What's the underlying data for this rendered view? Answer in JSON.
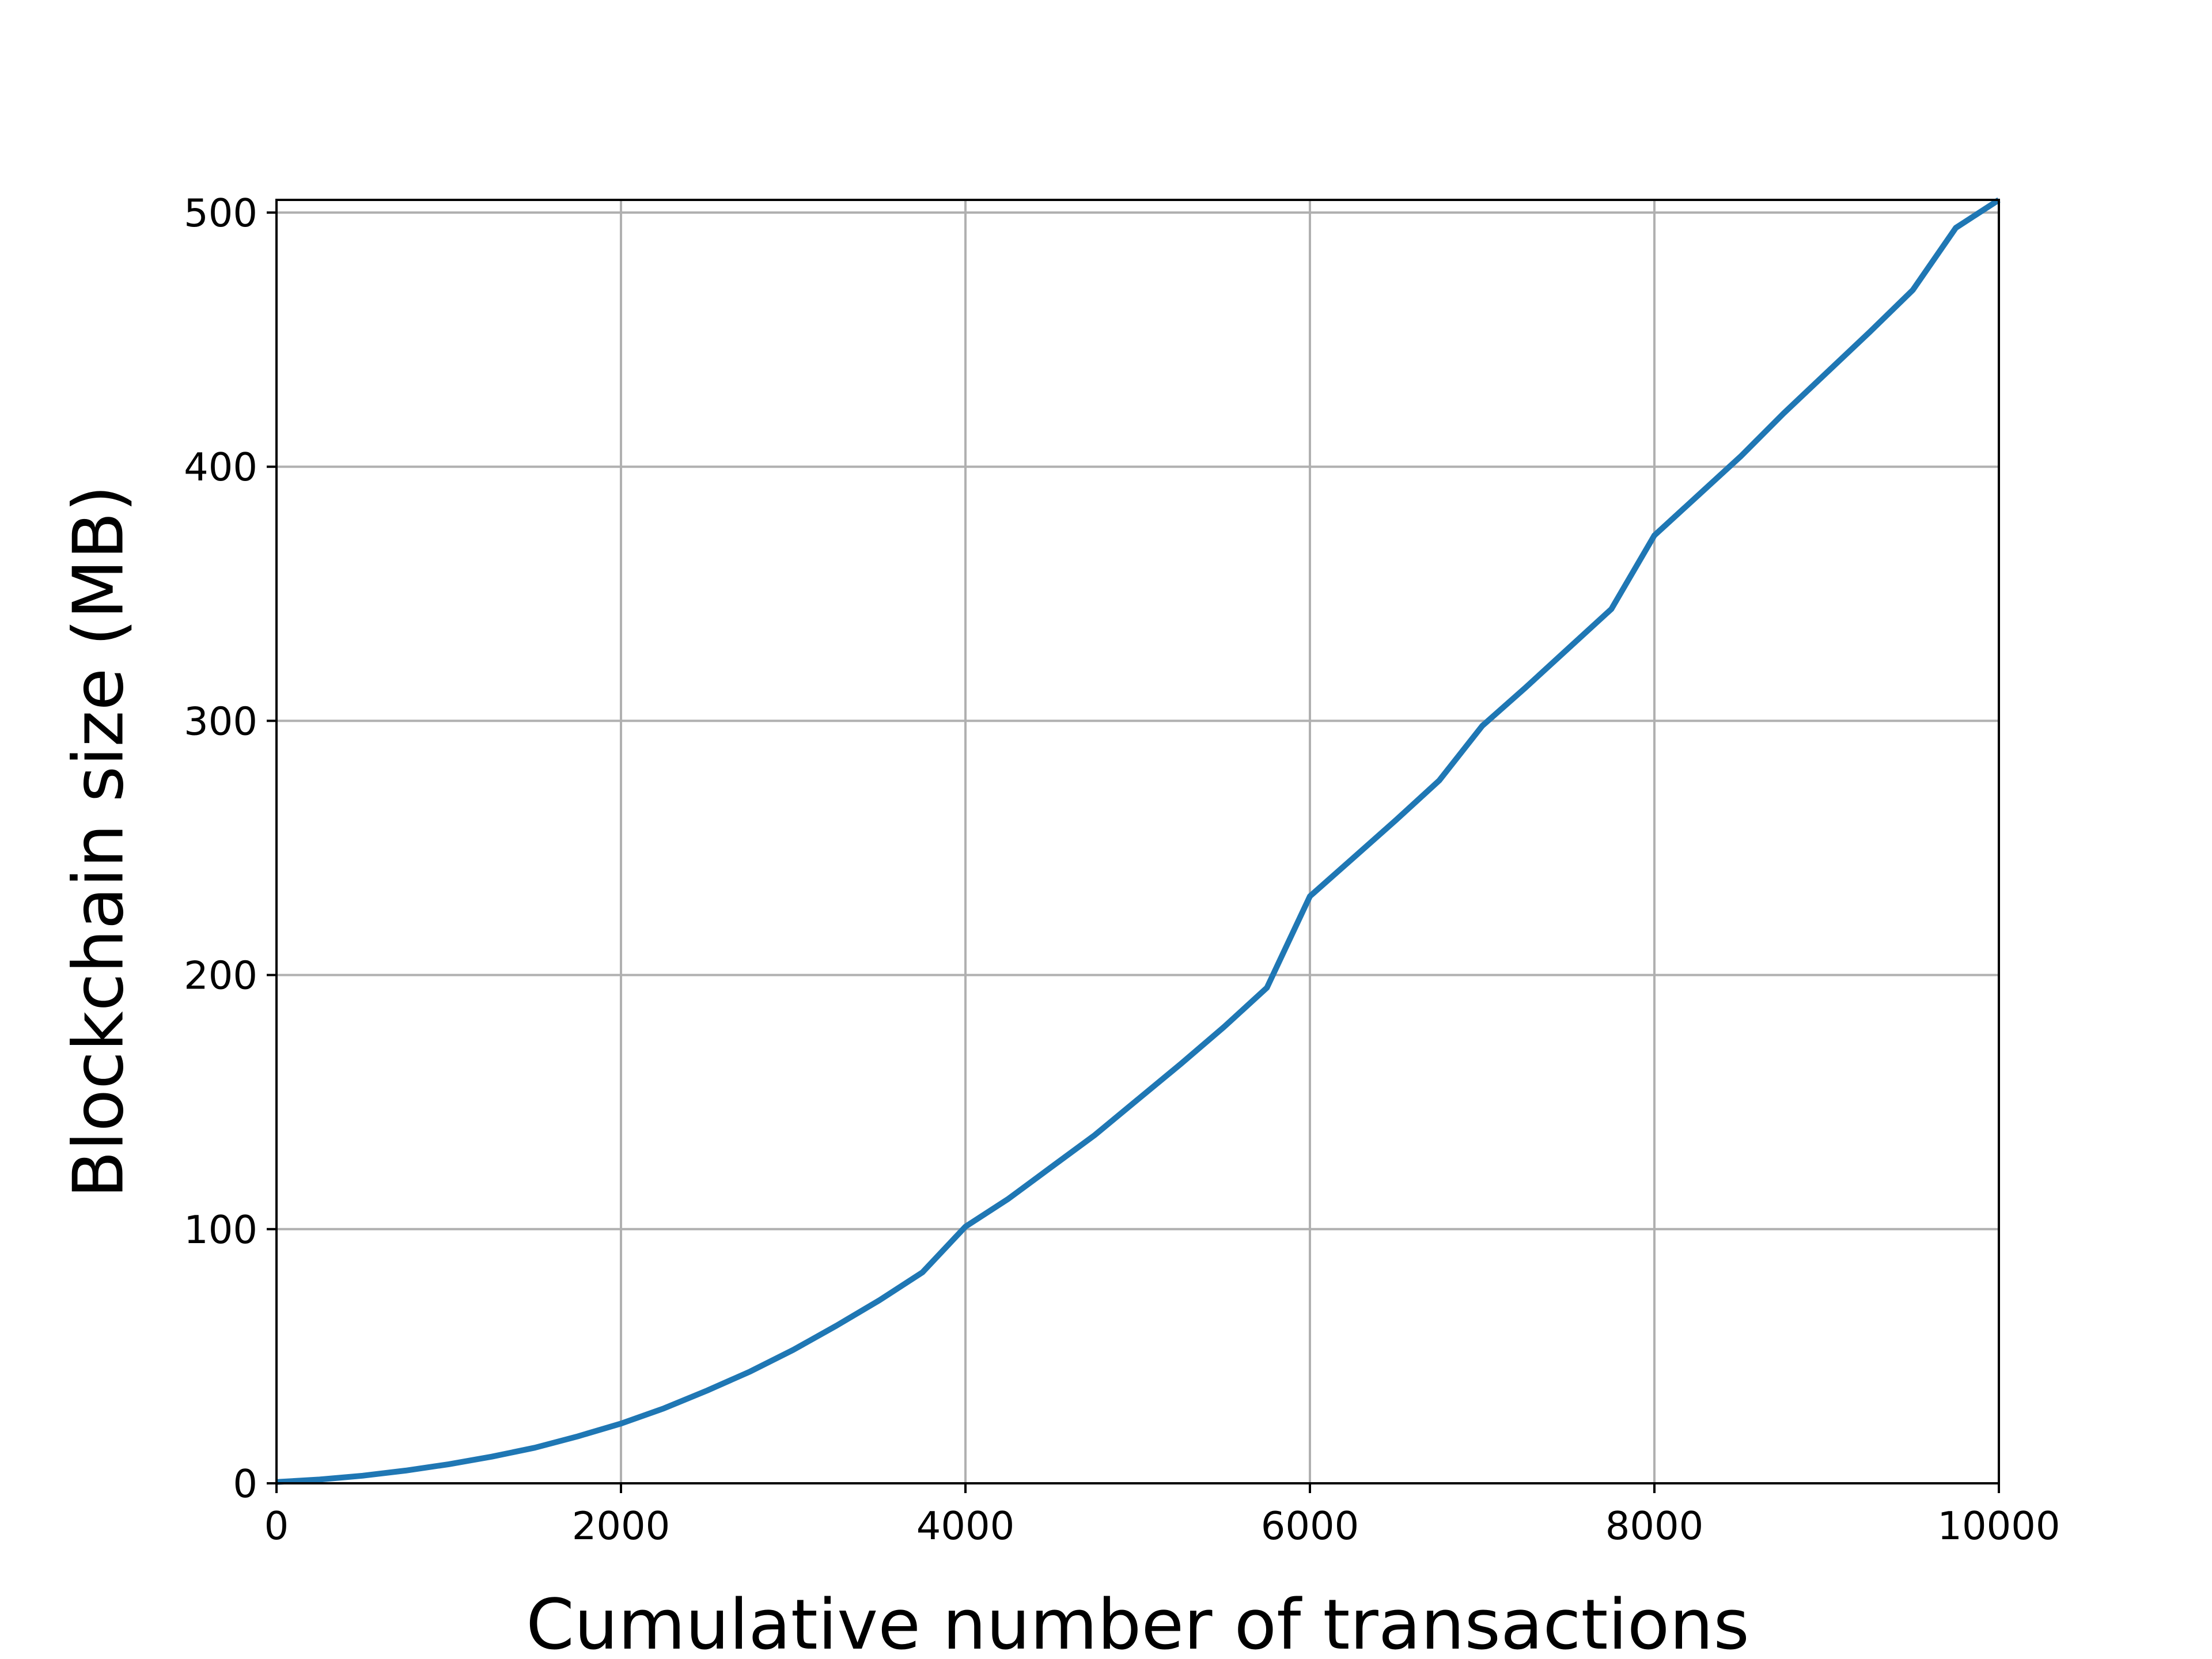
{
  "chart_data": {
    "type": "line",
    "title": "",
    "xlabel": "Cumulative number of transactions",
    "ylabel": "Blockchain size (MB)",
    "xlim": [
      0,
      10000
    ],
    "ylim": [
      0,
      505
    ],
    "xticks": [
      0,
      2000,
      4000,
      6000,
      8000,
      10000
    ],
    "yticks": [
      0,
      100,
      200,
      300,
      400,
      500
    ],
    "grid": true,
    "legend": "none",
    "series": [
      {
        "color": "#1f77b4",
        "x": [
          0,
          250,
          500,
          750,
          1000,
          1250,
          1500,
          1750,
          2000,
          2250,
          2500,
          2750,
          3000,
          3250,
          3500,
          3750,
          4000,
          4250,
          4500,
          4750,
          5000,
          5250,
          5500,
          5750,
          6000,
          6250,
          6500,
          6750,
          7000,
          7250,
          7500,
          7750,
          8000,
          8250,
          8500,
          8750,
          9000,
          9250,
          9500,
          9750,
          10000
        ],
        "y": [
          0.5,
          1.5,
          3,
          5,
          7.5,
          10.5,
          14,
          18.5,
          23.5,
          29.5,
          36.5,
          44,
          52.5,
          62,
          72,
          83,
          101,
          112,
          124.5,
          137,
          151,
          165,
          179.5,
          195,
          231,
          246,
          261,
          276.5,
          298,
          313,
          328.5,
          344,
          373,
          388.5,
          404,
          421,
          437,
          453,
          469.5,
          494,
          505
        ]
      }
    ]
  }
}
